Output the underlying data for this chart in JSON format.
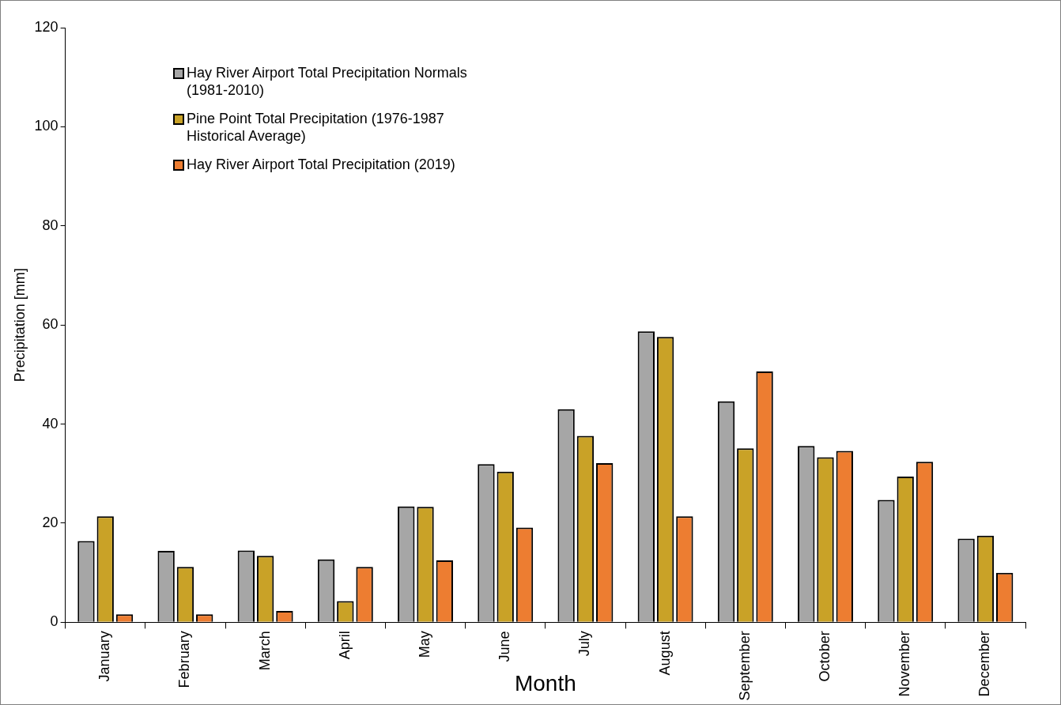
{
  "chart_data": {
    "type": "bar",
    "xlabel": "Month",
    "ylabel": "Precipitation [mm]",
    "categories": [
      "January",
      "February",
      "March",
      "April",
      "May",
      "June",
      "July",
      "August",
      "September",
      "October",
      "November",
      "December"
    ],
    "series": [
      {
        "name": "Hay River Airport Total Precipitation Normals (1981-2010)",
        "color": "#a6a6a6",
        "values": [
          16.4,
          14.4,
          14.5,
          12.7,
          23.4,
          31.9,
          43.0,
          58.7,
          44.6,
          35.6,
          24.7,
          16.9
        ]
      },
      {
        "name": "Pine Point Total Precipitation (1976-1987 Historical Average)",
        "color": "#c9a227",
        "values": [
          21.4,
          11.2,
          13.4,
          4.3,
          23.3,
          30.4,
          37.6,
          57.6,
          35.1,
          33.3,
          29.4,
          17.5
        ]
      },
      {
        "name": "Hay River Airport Total Precipitation (2019)",
        "color": "#ed7d31",
        "values": [
          1.6,
          1.6,
          2.3,
          11.2,
          12.5,
          19.1,
          32.1,
          21.4,
          50.6,
          34.6,
          32.4,
          10.0
        ]
      }
    ],
    "ylim": [
      0,
      120
    ],
    "yticks": [
      0,
      20,
      40,
      60,
      80,
      100,
      120
    ],
    "grid": false,
    "legend": "top left"
  }
}
